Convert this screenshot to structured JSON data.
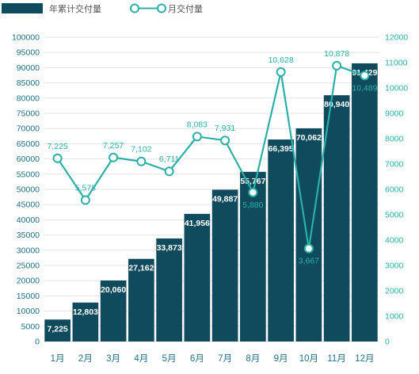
{
  "chart_data": {
    "type": "bar",
    "legend": {
      "position": "top-left"
    },
    "categories": [
      "1月",
      "2月",
      "3月",
      "4月",
      "5月",
      "6月",
      "7月",
      "8月",
      "9月",
      "10月",
      "11月",
      "12月"
    ],
    "series": [
      {
        "name": "年累计交付量",
        "type": "bar",
        "axis": "left",
        "values": [
          7225,
          12803,
          20060,
          27162,
          33873,
          41956,
          49887,
          55767,
          66395,
          70062,
          80940,
          91429
        ],
        "labels": [
          "7,225",
          "12,803",
          "20,060",
          "27,162",
          "33,873",
          "41,956",
          "49,887",
          "55,767",
          "66,395",
          "70,062",
          "80,940",
          "91,429"
        ]
      },
      {
        "name": "月交付量",
        "type": "line",
        "axis": "right",
        "values": [
          7225,
          5578,
          7257,
          7102,
          6711,
          8083,
          7931,
          5880,
          10628,
          3667,
          10878,
          10489
        ],
        "labels": [
          "7,225",
          "5,578",
          "7,257",
          "7,102",
          "6,711",
          "8,083",
          "7,931",
          "5,880",
          "10,628",
          "3,667",
          "10,878",
          "10,489"
        ]
      }
    ],
    "y_left": {
      "min": 0,
      "max": 100000,
      "ticks": [
        "0",
        "5000",
        "10000",
        "15000",
        "20000",
        "25000",
        "30000",
        "35000",
        "40000",
        "45000",
        "50000",
        "55000",
        "60000",
        "65000",
        "70000",
        "75000",
        "80000",
        "85000",
        "90000",
        "95000",
        "100000"
      ]
    },
    "y_right": {
      "min": 0,
      "max": 12000,
      "ticks": [
        "0",
        "1000",
        "2000",
        "3000",
        "4000",
        "5000",
        "6000",
        "7000",
        "8000",
        "9000",
        "10000",
        "11000",
        "12000"
      ]
    },
    "grid": true,
    "colors": {
      "bar": "#0f4a5d",
      "line": "#2bb0a8",
      "left_axis": "#1e6f84",
      "right_axis": "#2bb0a8",
      "grid": "#e3e3e3"
    }
  }
}
